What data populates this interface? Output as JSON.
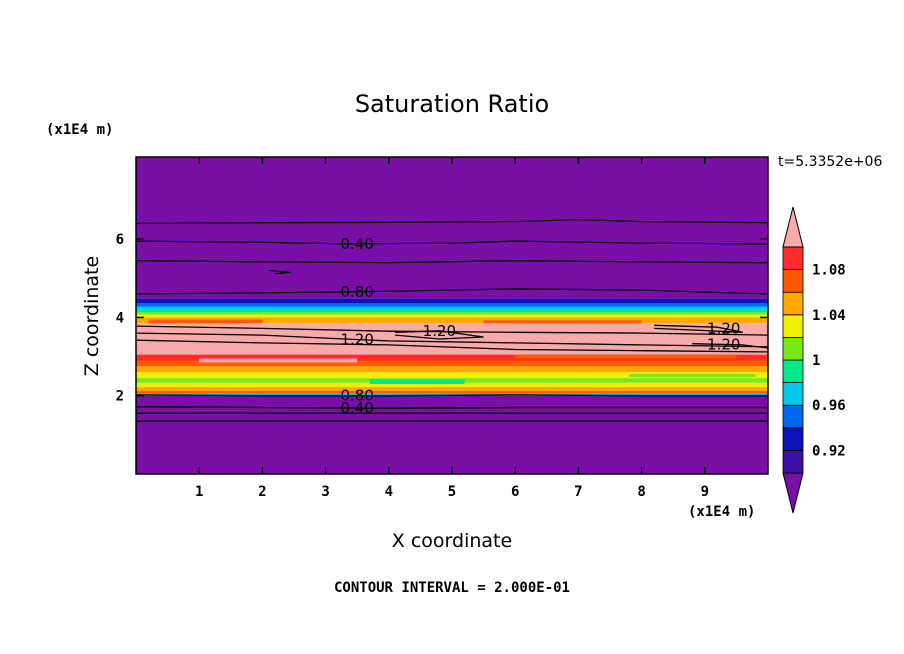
{
  "chart_data": {
    "type": "heatmap",
    "title": "Saturation Ratio",
    "xlabel": "X coordinate",
    "ylabel": "Z coordinate",
    "x_unit": "(x1E4 m)",
    "y_unit": "(x1E4 m)",
    "time_label": "t=5.3352e+06",
    "footer": "CONTOUR INTERVAL = 2.000E-01",
    "xlim": [
      0,
      10
    ],
    "ylim": [
      0,
      8.1
    ],
    "x_ticks": [
      1,
      2,
      3,
      4,
      5,
      6,
      7,
      8,
      9
    ],
    "x_tick_labels": [
      "1",
      "2",
      "3",
      "4",
      "5",
      "6",
      "7",
      "8",
      "9"
    ],
    "y_ticks": [
      2,
      4,
      6
    ],
    "y_tick_labels": [
      "2",
      "4",
      "6"
    ],
    "colorbar": {
      "levels": [
        0.9,
        0.92,
        0.94,
        0.96,
        0.98,
        1.0,
        1.02,
        1.04,
        1.06,
        1.08,
        1.1
      ],
      "colors": [
        "#7a0fa8",
        "#3a0fa8",
        "#0a12b8",
        "#0068f0",
        "#00c8e8",
        "#00e888",
        "#78e81e",
        "#f0f000",
        "#ffa800",
        "#ff5a00",
        "#ff2a2a",
        "#f8aaaa"
      ],
      "tick_values": [
        0.92,
        0.96,
        1.0,
        1.04,
        1.08
      ],
      "tick_labels": [
        "0.92",
        "0.96",
        "1",
        "1.04",
        "1.08"
      ]
    },
    "bands": [
      {
        "z0": 4.48,
        "z1": 8.1,
        "color": "#7a0fa8"
      },
      {
        "z0": 4.36,
        "z1": 4.48,
        "color": "#0a12b8"
      },
      {
        "z0": 4.28,
        "z1": 4.36,
        "color": "#0068f0"
      },
      {
        "z0": 4.2,
        "z1": 4.28,
        "color": "#00c8e8"
      },
      {
        "z0": 4.13,
        "z1": 4.2,
        "color": "#00e888"
      },
      {
        "z0": 4.07,
        "z1": 4.13,
        "color": "#78e81e"
      },
      {
        "z0": 4.0,
        "z1": 4.07,
        "color": "#f0f000"
      },
      {
        "z0": 3.85,
        "z1": 4.0,
        "color": "#ffa800"
      },
      {
        "z0": 3.05,
        "z1": 3.85,
        "color": "#f8aaaa"
      },
      {
        "z0": 2.9,
        "z1": 3.05,
        "color": "#ff2a2a"
      },
      {
        "z0": 2.75,
        "z1": 2.9,
        "color": "#ff5a00"
      },
      {
        "z0": 2.6,
        "z1": 2.75,
        "color": "#ffa800"
      },
      {
        "z0": 2.45,
        "z1": 2.6,
        "color": "#f0f000"
      },
      {
        "z0": 2.33,
        "z1": 2.45,
        "color": "#78e81e"
      },
      {
        "z0": 2.22,
        "z1": 2.33,
        "color": "#f0f000"
      },
      {
        "z0": 2.12,
        "z1": 2.22,
        "color": "#ffa800"
      },
      {
        "z0": 2.05,
        "z1": 2.12,
        "color": "#ff5a00"
      },
      {
        "z0": 2.0,
        "z1": 2.05,
        "color": "#00c8e8"
      },
      {
        "z0": 0.0,
        "z1": 2.0,
        "color": "#7a0fa8"
      }
    ],
    "patches": [
      {
        "x0": 0.2,
        "x1": 2.0,
        "z0": 3.85,
        "z1": 3.95,
        "color": "#ff5a00"
      },
      {
        "x0": 5.5,
        "x1": 8.0,
        "z0": 3.85,
        "z1": 3.93,
        "color": "#ff5a00"
      },
      {
        "x0": 1.0,
        "x1": 3.5,
        "z0": 2.85,
        "z1": 2.95,
        "color": "#f8aaaa"
      },
      {
        "x0": 6.0,
        "x1": 9.5,
        "z0": 2.95,
        "z1": 3.05,
        "color": "#ff5a00"
      },
      {
        "x0": 3.7,
        "x1": 5.2,
        "z0": 2.3,
        "z1": 2.42,
        "color": "#00e888"
      },
      {
        "x0": 7.8,
        "x1": 9.8,
        "z0": 2.48,
        "z1": 2.56,
        "color": "#78e81e"
      }
    ],
    "contours": [
      {
        "label": "",
        "points": [
          [
            0,
            6.4
          ],
          [
            2,
            6.42
          ],
          [
            4,
            6.43
          ],
          [
            6,
            6.45
          ],
          [
            7,
            6.5
          ],
          [
            8,
            6.45
          ],
          [
            10,
            6.42
          ]
        ]
      },
      {
        "label": "0.40",
        "label_x": 3.5,
        "points": [
          [
            0,
            5.95
          ],
          [
            2,
            5.92
          ],
          [
            3.3,
            5.88
          ],
          [
            5,
            5.9
          ],
          [
            6,
            5.95
          ],
          [
            8,
            5.9
          ],
          [
            10,
            5.88
          ]
        ]
      },
      {
        "label": "",
        "points": [
          [
            0,
            5.45
          ],
          [
            2,
            5.42
          ],
          [
            4,
            5.4
          ],
          [
            6,
            5.45
          ],
          [
            8,
            5.42
          ],
          [
            10,
            5.4
          ]
        ]
      },
      {
        "label": "0.80",
        "label_x": 3.5,
        "points": [
          [
            0,
            4.6
          ],
          [
            2,
            4.63
          ],
          [
            3.3,
            4.65
          ],
          [
            5,
            4.7
          ],
          [
            6,
            4.73
          ],
          [
            8,
            4.7
          ],
          [
            10,
            4.6
          ]
        ]
      },
      {
        "label": "",
        "points": [
          [
            0,
            3.78
          ],
          [
            2,
            3.72
          ],
          [
            4,
            3.65
          ],
          [
            6,
            3.62
          ],
          [
            8,
            3.6
          ],
          [
            10,
            3.55
          ]
        ]
      },
      {
        "label": "1.20",
        "label_x": 3.5,
        "points": [
          [
            0,
            3.6
          ],
          [
            2,
            3.55
          ],
          [
            3.3,
            3.45
          ],
          [
            4,
            3.4
          ],
          [
            6,
            3.35
          ],
          [
            8,
            3.3
          ],
          [
            10,
            3.25
          ]
        ]
      },
      {
        "label": "",
        "points": [
          [
            0,
            3.42
          ],
          [
            2,
            3.35
          ],
          [
            4,
            3.3
          ],
          [
            6,
            3.18
          ],
          [
            8,
            3.15
          ],
          [
            10,
            3.12
          ]
        ]
      },
      {
        "label": "0.80",
        "label_x": 3.5,
        "points": [
          [
            0,
            2.02
          ],
          [
            2,
            2.0
          ],
          [
            4,
            2.0
          ],
          [
            6,
            2.02
          ],
          [
            8,
            2.0
          ],
          [
            10,
            2.0
          ]
        ]
      },
      {
        "label": "0.40",
        "label_x": 3.5,
        "points": [
          [
            0,
            1.72
          ],
          [
            2,
            1.7
          ],
          [
            4,
            1.68
          ],
          [
            6,
            1.7
          ],
          [
            8,
            1.7
          ],
          [
            10,
            1.7
          ]
        ]
      },
      {
        "label": "",
        "points": [
          [
            0,
            1.55
          ],
          [
            2,
            1.55
          ],
          [
            4,
            1.55
          ],
          [
            6,
            1.55
          ],
          [
            8,
            1.55
          ],
          [
            10,
            1.55
          ]
        ]
      },
      {
        "label": "",
        "points": [
          [
            0,
            1.35
          ],
          [
            2,
            1.35
          ],
          [
            4,
            1.35
          ],
          [
            6,
            1.35
          ],
          [
            8,
            1.35
          ],
          [
            10,
            1.35
          ]
        ]
      }
    ],
    "small_contours": [
      {
        "label": "1.20",
        "label_x": 4.8,
        "points": [
          [
            4.1,
            3.62
          ],
          [
            4.8,
            3.66
          ],
          [
            5.5,
            3.5
          ],
          [
            4.8,
            3.45
          ],
          [
            4.1,
            3.55
          ]
        ]
      },
      {
        "label": "1.20",
        "label_x": 9.3,
        "points": [
          [
            8.2,
            3.8
          ],
          [
            9.2,
            3.75
          ],
          [
            9.6,
            3.62
          ],
          [
            8.8,
            3.68
          ],
          [
            8.2,
            3.72
          ]
        ]
      },
      {
        "label": "1.20",
        "label_x": 9.3,
        "points": [
          [
            8.8,
            3.33
          ],
          [
            9.6,
            3.3
          ],
          [
            10,
            3.22
          ]
        ]
      },
      {
        "label": "",
        "points": [
          [
            2.1,
            5.2
          ],
          [
            2.45,
            5.15
          ],
          [
            2.2,
            5.12
          ]
        ]
      }
    ]
  }
}
